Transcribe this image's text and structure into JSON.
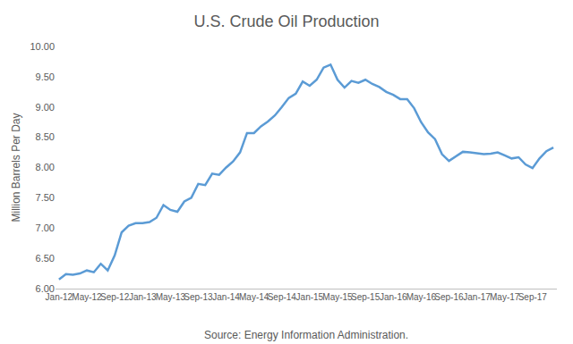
{
  "chart_data": {
    "type": "line",
    "title": "U.S. Crude Oil Production",
    "ylabel": "Million Barrels Per Day",
    "annotation": "Source: Energy Information Administration.",
    "categories": [
      "Jan-12",
      null,
      null,
      null,
      "May-12",
      null,
      null,
      null,
      "Sep-12",
      null,
      null,
      null,
      "Jan-13",
      null,
      null,
      null,
      "May-13",
      null,
      null,
      null,
      "Sep-13",
      null,
      null,
      null,
      "Jan-14",
      null,
      null,
      null,
      "May-14",
      null,
      null,
      null,
      "Sep-14",
      null,
      null,
      null,
      "Jan-15",
      null,
      null,
      null,
      "May-15",
      null,
      null,
      null,
      "Sep-15",
      null,
      null,
      null,
      "Jan-16",
      null,
      null,
      null,
      "May-16",
      null,
      null,
      null,
      "Sep-16",
      null,
      null,
      null,
      "Jan-17",
      null,
      null,
      null,
      "May-17",
      null,
      null,
      null,
      "Sep-17",
      null,
      null,
      null
    ],
    "values": [
      6.15,
      6.24,
      6.23,
      6.25,
      6.3,
      6.27,
      6.41,
      6.3,
      6.55,
      6.93,
      7.04,
      7.08,
      7.08,
      7.1,
      7.17,
      7.38,
      7.3,
      7.27,
      7.44,
      7.5,
      7.73,
      7.71,
      7.9,
      7.88,
      8.0,
      8.1,
      8.25,
      8.57,
      8.57,
      8.68,
      8.76,
      8.86,
      9.0,
      9.15,
      9.22,
      9.42,
      9.35,
      9.45,
      9.65,
      9.7,
      9.45,
      9.32,
      9.43,
      9.4,
      9.45,
      9.38,
      9.33,
      9.25,
      9.2,
      9.13,
      9.13,
      8.98,
      8.75,
      8.58,
      8.47,
      8.22,
      8.11,
      8.19,
      8.26,
      8.25,
      8.24,
      8.22,
      8.23,
      8.25,
      8.2,
      8.15,
      8.17,
      8.05,
      7.99,
      8.15,
      8.27,
      8.33
    ],
    "color": "#5b9bd5",
    "ylim": [
      6.0,
      10.0
    ],
    "yticks": [
      {
        "value": 6.0,
        "label": "6.00"
      },
      {
        "value": 6.5,
        "label": "6.50"
      },
      {
        "value": 7.0,
        "label": "7.00"
      },
      {
        "value": 7.5,
        "label": "7.50"
      },
      {
        "value": 8.0,
        "label": "8.00"
      },
      {
        "value": 8.5,
        "label": "8.50"
      },
      {
        "value": 9.0,
        "label": "9.00"
      },
      {
        "value": 9.5,
        "label": "9.50"
      },
      {
        "value": 10.0,
        "label": "10.00"
      }
    ],
    "grid": false
  }
}
